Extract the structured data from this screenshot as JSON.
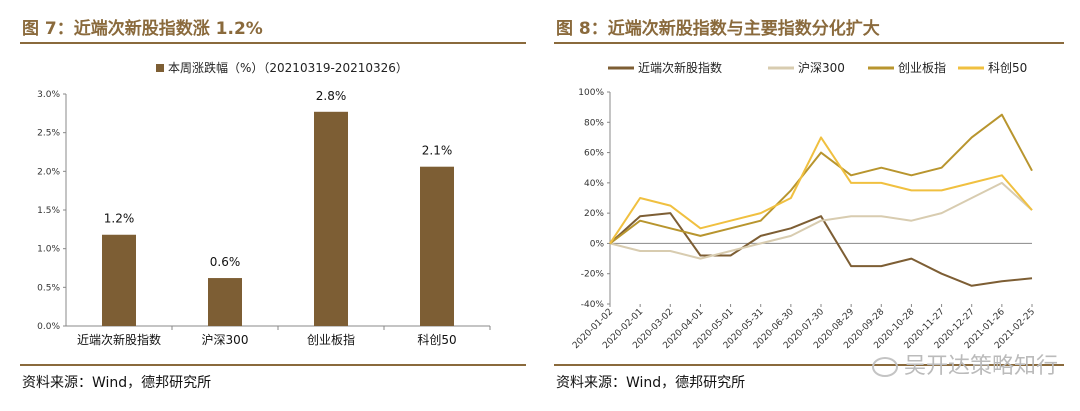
{
  "left": {
    "title": "图 7：近端次新股指数涨 1.2%",
    "source": "资料来源：Wind，德邦研究所",
    "chart_data": {
      "type": "bar",
      "legend": "本周涨跌幅（%）（20210319-20210326）",
      "categories": [
        "近端次新股指数",
        "沪深300",
        "创业板指",
        "科创50"
      ],
      "values": [
        1.18,
        0.62,
        2.77,
        2.06
      ],
      "data_labels": [
        "1.2%",
        "0.6%",
        "2.8%",
        "2.1%"
      ],
      "ylim": [
        0,
        3.0
      ],
      "yticks": [
        "0.0%",
        "0.5%",
        "1.0%",
        "1.5%",
        "2.0%",
        "2.5%",
        "3.0%"
      ],
      "grid": false,
      "color": "#7d5e34"
    }
  },
  "right": {
    "title": "图 8：近端次新股指数与主要指数分化扩大",
    "source": "资料来源：Wind，德邦研究所",
    "chart_data": {
      "type": "line",
      "x": [
        "2020-01-02",
        "2020-02-01",
        "2020-03-02",
        "2020-04-01",
        "2020-05-01",
        "2020-05-31",
        "2020-06-30",
        "2020-07-30",
        "2020-08-29",
        "2020-09-28",
        "2020-10-28",
        "2020-11-27",
        "2020-12-27",
        "2021-01-26",
        "2021-02-25"
      ],
      "ylim": [
        -40,
        100
      ],
      "yticks": [
        "100%",
        "80%",
        "60%",
        "40%",
        "20%",
        "0%",
        "-20%",
        "-40%"
      ],
      "series": [
        {
          "name": "近端次新股指数",
          "color": "#7d5e34",
          "values": [
            0,
            18,
            20,
            -8,
            -8,
            5,
            10,
            18,
            -15,
            -15,
            -10,
            -20,
            -28,
            -25,
            -23
          ]
        },
        {
          "name": "沪深300",
          "color": "#d8ccb0",
          "values": [
            0,
            -5,
            -5,
            -10,
            -5,
            0,
            5,
            15,
            18,
            18,
            15,
            20,
            30,
            40,
            22
          ]
        },
        {
          "name": "创业板指",
          "color": "#b8952e",
          "values": [
            0,
            15,
            10,
            5,
            10,
            15,
            35,
            60,
            45,
            50,
            45,
            50,
            70,
            85,
            48
          ]
        },
        {
          "name": "科创50",
          "color": "#f0c040",
          "values": [
            0,
            30,
            25,
            10,
            15,
            20,
            30,
            70,
            40,
            40,
            35,
            35,
            40,
            45,
            22
          ]
        }
      ],
      "legend_position": "top",
      "grid": false
    }
  },
  "watermark": "吴开达策略知行"
}
